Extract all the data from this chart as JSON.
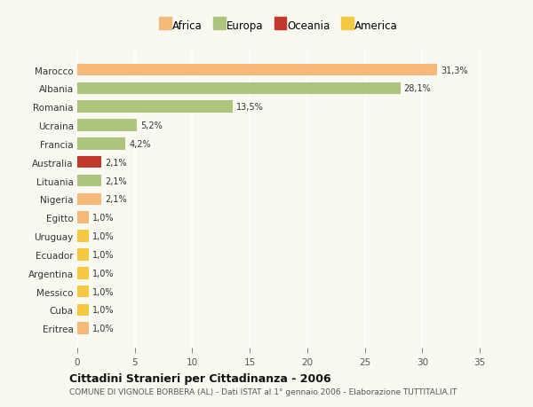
{
  "categories": [
    "Marocco",
    "Albania",
    "Romania",
    "Ucraina",
    "Francia",
    "Australia",
    "Lituania",
    "Nigeria",
    "Egitto",
    "Uruguay",
    "Ecuador",
    "Argentina",
    "Messico",
    "Cuba",
    "Eritrea"
  ],
  "values": [
    31.3,
    28.1,
    13.5,
    5.2,
    4.2,
    2.1,
    2.1,
    2.1,
    1.0,
    1.0,
    1.0,
    1.0,
    1.0,
    1.0,
    1.0
  ],
  "labels": [
    "31,3%",
    "28,1%",
    "13,5%",
    "5,2%",
    "4,2%",
    "2,1%",
    "2,1%",
    "2,1%",
    "1,0%",
    "1,0%",
    "1,0%",
    "1,0%",
    "1,0%",
    "1,0%",
    "1,0%"
  ],
  "colors": [
    "#f5b97a",
    "#adc47d",
    "#adc47d",
    "#adc47d",
    "#adc47d",
    "#c0392b",
    "#adc47d",
    "#f5b97a",
    "#f5b97a",
    "#f5c842",
    "#f5c842",
    "#f5c842",
    "#f5c842",
    "#f5c842",
    "#f5b97a"
  ],
  "continent_colors": {
    "Africa": "#f5b97a",
    "Europa": "#adc47d",
    "Oceania": "#c0392b",
    "America": "#f5c842"
  },
  "legend_labels": [
    "Africa",
    "Europa",
    "Oceania",
    "America"
  ],
  "title": "Cittadini Stranieri per Cittadinanza - 2006",
  "subtitle": "COMUNE DI VIGNOLE BORBERA (AL) - Dati ISTAT al 1° gennaio 2006 - Elaborazione TUTTITALIA.IT",
  "xlim": [
    0,
    35
  ],
  "xticks": [
    0,
    5,
    10,
    15,
    20,
    25,
    30,
    35
  ],
  "background_color": "#f9f9f2",
  "grid_color": "#ffffff",
  "bar_height": 0.65
}
